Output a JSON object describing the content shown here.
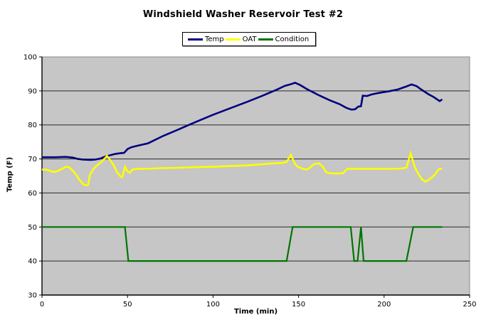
{
  "chart_data": {
    "type": "line",
    "title": "Windshield Washer Reservoir Test #2",
    "xlabel": "Time (min)",
    "ylabel": "Temp (F)",
    "xlim": [
      0,
      250
    ],
    "xtick_step": 50,
    "ylim": [
      30,
      100
    ],
    "ytick_step": 10,
    "grid": true,
    "legend_position": "top-center",
    "plot_bg_color": "#c6c6c6",
    "grid_color": "#2a2a2a",
    "axis_color": "#000000",
    "series": [
      {
        "name": "Temp",
        "color": "#000080",
        "line_width": 2.6,
        "points": [
          [
            0,
            70.5
          ],
          [
            8,
            70.5
          ],
          [
            14,
            70.6
          ],
          [
            18,
            70.4
          ],
          [
            21,
            70
          ],
          [
            24,
            69.8
          ],
          [
            28,
            69.7
          ],
          [
            31,
            69.8
          ],
          [
            34,
            70.1
          ],
          [
            37,
            70.7
          ],
          [
            40,
            71.1
          ],
          [
            43,
            71.5
          ],
          [
            46,
            71.7
          ],
          [
            48,
            71.8
          ],
          [
            50,
            72.9
          ],
          [
            52,
            73.4
          ],
          [
            56,
            73.9
          ],
          [
            62,
            74.6
          ],
          [
            71,
            76.8
          ],
          [
            80,
            78.7
          ],
          [
            90,
            80.9
          ],
          [
            100,
            83
          ],
          [
            110,
            84.9
          ],
          [
            120,
            86.8
          ],
          [
            129,
            88.6
          ],
          [
            137,
            90.3
          ],
          [
            142,
            91.5
          ],
          [
            145,
            91.9
          ],
          [
            148,
            92.4
          ],
          [
            151,
            91.7
          ],
          [
            155,
            90.5
          ],
          [
            162,
            88.7
          ],
          [
            168,
            87.3
          ],
          [
            174,
            86.1
          ],
          [
            178,
            85
          ],
          [
            181,
            84.5
          ],
          [
            183,
            84.6
          ],
          [
            185,
            85.4
          ],
          [
            186.5,
            85.5
          ],
          [
            187.5,
            88.6
          ],
          [
            190,
            88.5
          ],
          [
            193,
            89
          ],
          [
            197,
            89.4
          ],
          [
            203,
            89.9
          ],
          [
            208,
            90.4
          ],
          [
            213,
            91.3
          ],
          [
            216,
            91.9
          ],
          [
            219,
            91.4
          ],
          [
            222,
            90.3
          ],
          [
            226,
            89
          ],
          [
            229,
            88.2
          ],
          [
            231,
            87.5
          ],
          [
            232.5,
            87
          ],
          [
            234,
            87.5
          ]
        ]
      },
      {
        "name": "OAT",
        "color": "#ffff00",
        "line_width": 2.6,
        "points": [
          [
            0,
            66.9
          ],
          [
            3,
            66.8
          ],
          [
            6,
            66.3
          ],
          [
            8,
            66.2
          ],
          [
            11,
            66.9
          ],
          [
            14,
            67.7
          ],
          [
            16,
            67.5
          ],
          [
            18,
            66.5
          ],
          [
            20,
            65.3
          ],
          [
            22,
            63.8
          ],
          [
            24,
            62.6
          ],
          [
            26,
            62.2
          ],
          [
            27,
            62.4
          ],
          [
            28,
            65.3
          ],
          [
            30,
            67
          ],
          [
            32,
            68
          ],
          [
            35,
            69.2
          ],
          [
            38,
            70.9
          ],
          [
            40,
            69.6
          ],
          [
            42,
            68
          ],
          [
            44,
            66
          ],
          [
            46,
            64.8
          ],
          [
            47,
            64.7
          ],
          [
            48.5,
            67.7
          ],
          [
            50,
            66.3
          ],
          [
            51.5,
            66
          ],
          [
            53,
            66.9
          ],
          [
            56,
            67.1
          ],
          [
            60,
            67.1
          ],
          [
            70,
            67.3
          ],
          [
            80,
            67.4
          ],
          [
            90,
            67.6
          ],
          [
            100,
            67.7
          ],
          [
            110,
            67.9
          ],
          [
            120,
            68.1
          ],
          [
            128,
            68.4
          ],
          [
            135,
            68.7
          ],
          [
            140,
            68.8
          ],
          [
            143,
            69.1
          ],
          [
            145.5,
            71.2
          ],
          [
            148,
            68.4
          ],
          [
            150,
            67.6
          ],
          [
            153,
            67
          ],
          [
            155,
            66.9
          ],
          [
            157,
            67.6
          ],
          [
            159,
            68.5
          ],
          [
            162,
            68.7
          ],
          [
            164,
            67.8
          ],
          [
            166,
            66.2
          ],
          [
            168,
            65.8
          ],
          [
            172,
            65.7
          ],
          [
            176,
            65.8
          ],
          [
            178.5,
            67.1
          ],
          [
            190,
            67.1
          ],
          [
            205,
            67.1
          ],
          [
            210,
            67.2
          ],
          [
            213,
            67.4
          ],
          [
            215.5,
            71.6
          ],
          [
            218,
            67.5
          ],
          [
            220,
            65.6
          ],
          [
            222,
            64.1
          ],
          [
            224,
            63.3
          ],
          [
            226,
            63.8
          ],
          [
            228,
            64.6
          ],
          [
            230,
            65.6
          ],
          [
            232,
            67
          ],
          [
            234,
            67.2
          ]
        ]
      },
      {
        "name": "Condition",
        "color": "#007500",
        "line_width": 2.2,
        "points": [
          [
            0,
            50
          ],
          [
            48.5,
            50
          ],
          [
            49.5,
            45
          ],
          [
            50.5,
            40
          ],
          [
            143,
            40
          ],
          [
            146.5,
            50
          ],
          [
            180.5,
            50
          ],
          [
            182.5,
            40
          ],
          [
            184.5,
            40
          ],
          [
            186.5,
            50
          ],
          [
            188,
            40
          ],
          [
            213,
            40
          ],
          [
            217,
            50
          ],
          [
            234,
            50
          ]
        ]
      }
    ]
  }
}
